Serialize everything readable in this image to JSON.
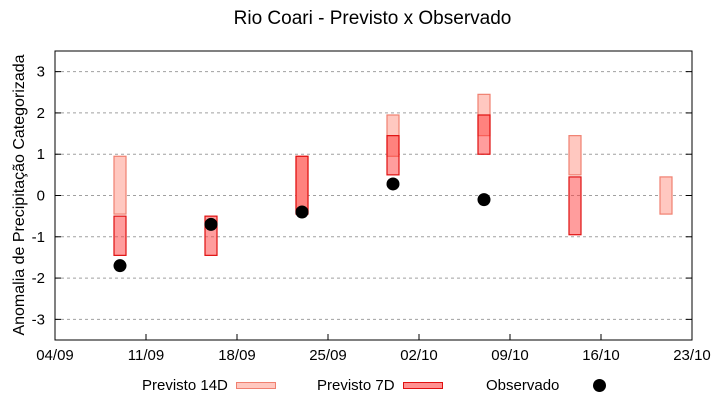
{
  "chart_data": {
    "type": "bar",
    "subtype": "floating-range-with-points",
    "title": "Rio Coari - Previsto x Observado",
    "xlabel": "",
    "ylabel": "Anomalia de Precipitação Categorizada",
    "xlim": [
      "04/09",
      "23/10"
    ],
    "ylim": [
      -3.5,
      3.5
    ],
    "x_ticks": [
      "04/09",
      "11/09",
      "18/09",
      "25/09",
      "02/10",
      "09/10",
      "16/10",
      "23/10"
    ],
    "y_ticks": [
      3,
      2,
      1,
      0,
      -1,
      -2,
      -3
    ],
    "grid": "horizontal dashed",
    "legend_position": "bottom",
    "categories": [
      "09/09",
      "16/09",
      "23/09",
      "30/09",
      "07/10",
      "14/10",
      "21/10"
    ],
    "series": [
      {
        "name": "Previsto 14D",
        "type": "range",
        "color": "#FFC8C0",
        "border": "#F08070",
        "values": [
          [
            -0.45,
            0.95
          ],
          null,
          [
            -0.4,
            0.95
          ],
          [
            0.95,
            1.95
          ],
          [
            1.45,
            2.45
          ],
          [
            0.5,
            1.45
          ],
          [
            -0.45,
            0.45
          ]
        ]
      },
      {
        "name": "Previsto 7D",
        "type": "range",
        "color": "#FF8080",
        "border": "#E01010",
        "values": [
          [
            -1.45,
            -0.5
          ],
          [
            -1.45,
            -0.5
          ],
          [
            -0.45,
            0.95
          ],
          [
            0.5,
            1.45
          ],
          [
            1.0,
            1.95
          ],
          [
            -0.95,
            0.45
          ],
          null
        ]
      },
      {
        "name": "Observado",
        "type": "scatter",
        "color": "#000000",
        "values": [
          -1.7,
          -0.7,
          -0.4,
          0.28,
          -0.1,
          null,
          null
        ]
      }
    ]
  },
  "title": "Rio Coari - Previsto x Observado",
  "ylabel": "Anomalia de Precipitação Categorizada",
  "legend": {
    "items": [
      {
        "label": "Previsto 14D"
      },
      {
        "label": "Previsto 7D"
      },
      {
        "label": "Observado"
      }
    ]
  }
}
